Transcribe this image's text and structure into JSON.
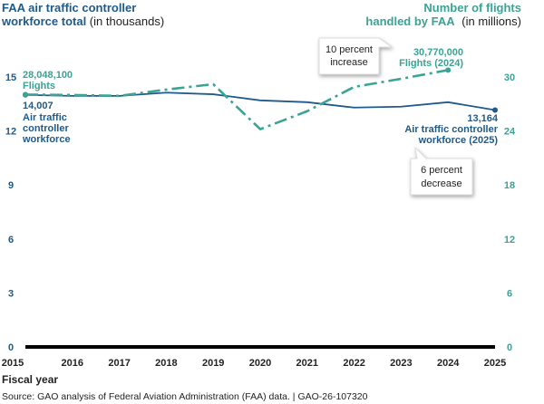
{
  "chart_data": {
    "type": "line",
    "title_left": {
      "bold": "FAA air traffic controller workforce total",
      "unit": "(in thousands)"
    },
    "title_right": {
      "bold_line1": "Number of flights",
      "bold_line2": "handled by FAA",
      "unit": "(in millions)"
    },
    "xlabel": "Fiscal year",
    "x": [
      "2015",
      "2016",
      "2017",
      "2018",
      "2019",
      "2020",
      "2021",
      "2022",
      "2023",
      "2024",
      "2025"
    ],
    "left_axis": {
      "ylim": [
        0,
        15
      ],
      "ticks": [
        "0",
        "3",
        "6",
        "9",
        "12",
        "15"
      ]
    },
    "right_axis": {
      "ylim": [
        0,
        30
      ],
      "ticks": [
        "0",
        "6",
        "12",
        "18",
        "24",
        "30"
      ]
    },
    "series": [
      {
        "name": "Air traffic controller workforce",
        "axis": "left",
        "color": "#1f5a8a",
        "style": "solid",
        "values": [
          14.007,
          13.95,
          13.95,
          14.13,
          14.04,
          13.7,
          13.6,
          13.3,
          13.35,
          13.6,
          13.164
        ]
      },
      {
        "name": "Flights",
        "axis": "right",
        "color": "#3aa394",
        "style": "dash-dot",
        "values": [
          28.048,
          28.0,
          27.9,
          28.6,
          29.2,
          24.2,
          26.2,
          28.9,
          29.8,
          30.77,
          null
        ]
      }
    ],
    "annotations": {
      "flights_2015": {
        "value": "28,048,100",
        "label": "Flights"
      },
      "workforce_2015": {
        "value": "14,007",
        "line1": "Air traffic",
        "line2": "controller",
        "line3": "workforce"
      },
      "flights_2024": {
        "value": "30,770,000",
        "label": "Flights (2024)"
      },
      "workforce_2025": {
        "value": "13,164",
        "line1": "Air traffic controller",
        "line2": "workforce (2025)"
      },
      "increase_callout": {
        "line1": "10 percent",
        "line2": "increase"
      },
      "decrease_callout": {
        "line1": "6 percent",
        "line2": "decrease"
      }
    },
    "source": "Source: GAO analysis of Federal Aviation Administration (FAA) data.  |  GAO-26-107320"
  }
}
